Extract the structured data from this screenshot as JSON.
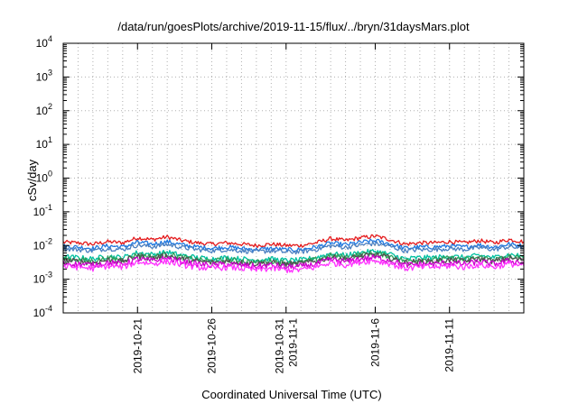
{
  "chart_data": {
    "type": "line",
    "title": "/data/run/goesPlots/archive/2019-11-15/flux/../bryn/31daysMars.plot",
    "xlabel": "Coordinated Universal Time (UTC)",
    "ylabel": "cSv/day",
    "yscale": "log",
    "ylim": [
      0.0001,
      10000
    ],
    "xlim": [
      "2019-10-16",
      "2019-11-16"
    ],
    "grid": true,
    "legend": "none",
    "y_ticks": [
      {
        "base": "10",
        "exp": "-4"
      },
      {
        "base": "10",
        "exp": "-3"
      },
      {
        "base": "10",
        "exp": "-2"
      },
      {
        "base": "10",
        "exp": "-1"
      },
      {
        "base": "10",
        "exp": "0"
      },
      {
        "base": "10",
        "exp": "1"
      },
      {
        "base": "10",
        "exp": "2"
      },
      {
        "base": "10",
        "exp": "3"
      },
      {
        "base": "10",
        "exp": "4"
      }
    ],
    "x_ticks": [
      {
        "date": "2019-10-21",
        "lines": [
          "2019-10-21"
        ]
      },
      {
        "date": "2019-10-26",
        "lines": [
          "2019-10-26"
        ]
      },
      {
        "date": "2019-10-31",
        "lines": [
          "2019-10-31",
          "2019-11-1"
        ]
      },
      {
        "date": "2019-11-06",
        "lines": [
          "2019-11-6"
        ]
      },
      {
        "date": "2019-11-11",
        "lines": [
          "2019-11-11"
        ]
      }
    ],
    "x": [
      "2019-10-16",
      "2019-10-17",
      "2019-10-18",
      "2019-10-19",
      "2019-10-20",
      "2019-10-21",
      "2019-10-22",
      "2019-10-23",
      "2019-10-24",
      "2019-10-25",
      "2019-10-26",
      "2019-10-27",
      "2019-10-28",
      "2019-10-29",
      "2019-10-30",
      "2019-10-31",
      "2019-11-01",
      "2019-11-02",
      "2019-11-03",
      "2019-11-04",
      "2019-11-05",
      "2019-11-06",
      "2019-11-07",
      "2019-11-08",
      "2019-11-09",
      "2019-11-10",
      "2019-11-11",
      "2019-11-12",
      "2019-11-13",
      "2019-11-14",
      "2019-11-15",
      "2019-11-16"
    ],
    "series": [
      {
        "color": "#e41a1c",
        "values": [
          0.0125,
          0.012,
          0.011,
          0.013,
          0.012,
          0.017,
          0.015,
          0.018,
          0.014,
          0.012,
          0.011,
          0.012,
          0.011,
          0.01,
          0.011,
          0.01,
          0.01,
          0.012,
          0.016,
          0.014,
          0.017,
          0.019,
          0.015,
          0.011,
          0.012,
          0.012,
          0.013,
          0.012,
          0.014,
          0.012,
          0.015,
          0.013
        ]
      },
      {
        "color": "#1f78e0",
        "values": [
          0.0095,
          0.009,
          0.0082,
          0.0098,
          0.009,
          0.0125,
          0.011,
          0.013,
          0.0105,
          0.009,
          0.0083,
          0.009,
          0.0082,
          0.0076,
          0.0082,
          0.0075,
          0.0076,
          0.009,
          0.0118,
          0.0105,
          0.0125,
          0.014,
          0.0112,
          0.0083,
          0.009,
          0.009,
          0.0097,
          0.009,
          0.0104,
          0.009,
          0.011,
          0.0098
        ]
      },
      {
        "color": "#4a7fc0",
        "values": [
          0.008,
          0.0076,
          0.007,
          0.0082,
          0.0076,
          0.0104,
          0.0092,
          0.0108,
          0.0088,
          0.0076,
          0.007,
          0.0076,
          0.007,
          0.0065,
          0.007,
          0.0064,
          0.0065,
          0.0076,
          0.0098,
          0.0088,
          0.0104,
          0.0116,
          0.0094,
          0.007,
          0.0076,
          0.0076,
          0.0082,
          0.0076,
          0.0087,
          0.0076,
          0.0092,
          0.0082
        ]
      },
      {
        "color": "#00c0a0",
        "values": [
          0.0046,
          0.0044,
          0.004,
          0.0048,
          0.0044,
          0.0062,
          0.0054,
          0.0064,
          0.0051,
          0.0044,
          0.004,
          0.0044,
          0.004,
          0.0037,
          0.004,
          0.0036,
          0.0037,
          0.0044,
          0.0058,
          0.0051,
          0.0062,
          0.0068,
          0.0055,
          0.004,
          0.0044,
          0.0044,
          0.0048,
          0.0044,
          0.0051,
          0.0044,
          0.0054,
          0.0048
        ]
      },
      {
        "color": "#2ca05a",
        "values": [
          0.004,
          0.0038,
          0.0035,
          0.0042,
          0.0038,
          0.0054,
          0.0047,
          0.0056,
          0.0045,
          0.0038,
          0.0035,
          0.0038,
          0.0035,
          0.0032,
          0.0035,
          0.0031,
          0.0032,
          0.0038,
          0.0051,
          0.0045,
          0.0054,
          0.006,
          0.0048,
          0.0035,
          0.0038,
          0.0038,
          0.0042,
          0.0038,
          0.0045,
          0.0038,
          0.0047,
          0.0042
        ]
      },
      {
        "color": "#505050",
        "values": [
          0.0036,
          0.0034,
          0.0031,
          0.0037,
          0.0034,
          0.0048,
          0.0042,
          0.005,
          0.004,
          0.0034,
          0.0031,
          0.0034,
          0.0031,
          0.0029,
          0.0031,
          0.0028,
          0.0029,
          0.0034,
          0.0045,
          0.004,
          0.0048,
          0.0053,
          0.0043,
          0.0031,
          0.0034,
          0.0034,
          0.0037,
          0.0034,
          0.004,
          0.0034,
          0.0042,
          0.0037
        ]
      },
      {
        "color": "#d000d0",
        "values": [
          0.003,
          0.0028,
          0.0026,
          0.0031,
          0.0028,
          0.004,
          0.0035,
          0.0042,
          0.0033,
          0.0028,
          0.0026,
          0.0028,
          0.0026,
          0.0024,
          0.0026,
          0.0023,
          0.0024,
          0.0028,
          0.0038,
          0.0033,
          0.004,
          0.0044,
          0.0036,
          0.0026,
          0.0028,
          0.0028,
          0.0031,
          0.0028,
          0.0033,
          0.0028,
          0.0035,
          0.0031
        ]
      },
      {
        "color": "#ff33ff",
        "values": [
          0.0024,
          0.0023,
          0.0021,
          0.0025,
          0.0023,
          0.0033,
          0.0029,
          0.0034,
          0.0027,
          0.0023,
          0.0021,
          0.0023,
          0.0021,
          0.0019,
          0.0021,
          0.0019,
          0.0019,
          0.0023,
          0.0031,
          0.0027,
          0.0033,
          0.0036,
          0.0029,
          0.0021,
          0.0023,
          0.0023,
          0.0025,
          0.0023,
          0.0027,
          0.0023,
          0.0029,
          0.0025
        ]
      }
    ]
  }
}
